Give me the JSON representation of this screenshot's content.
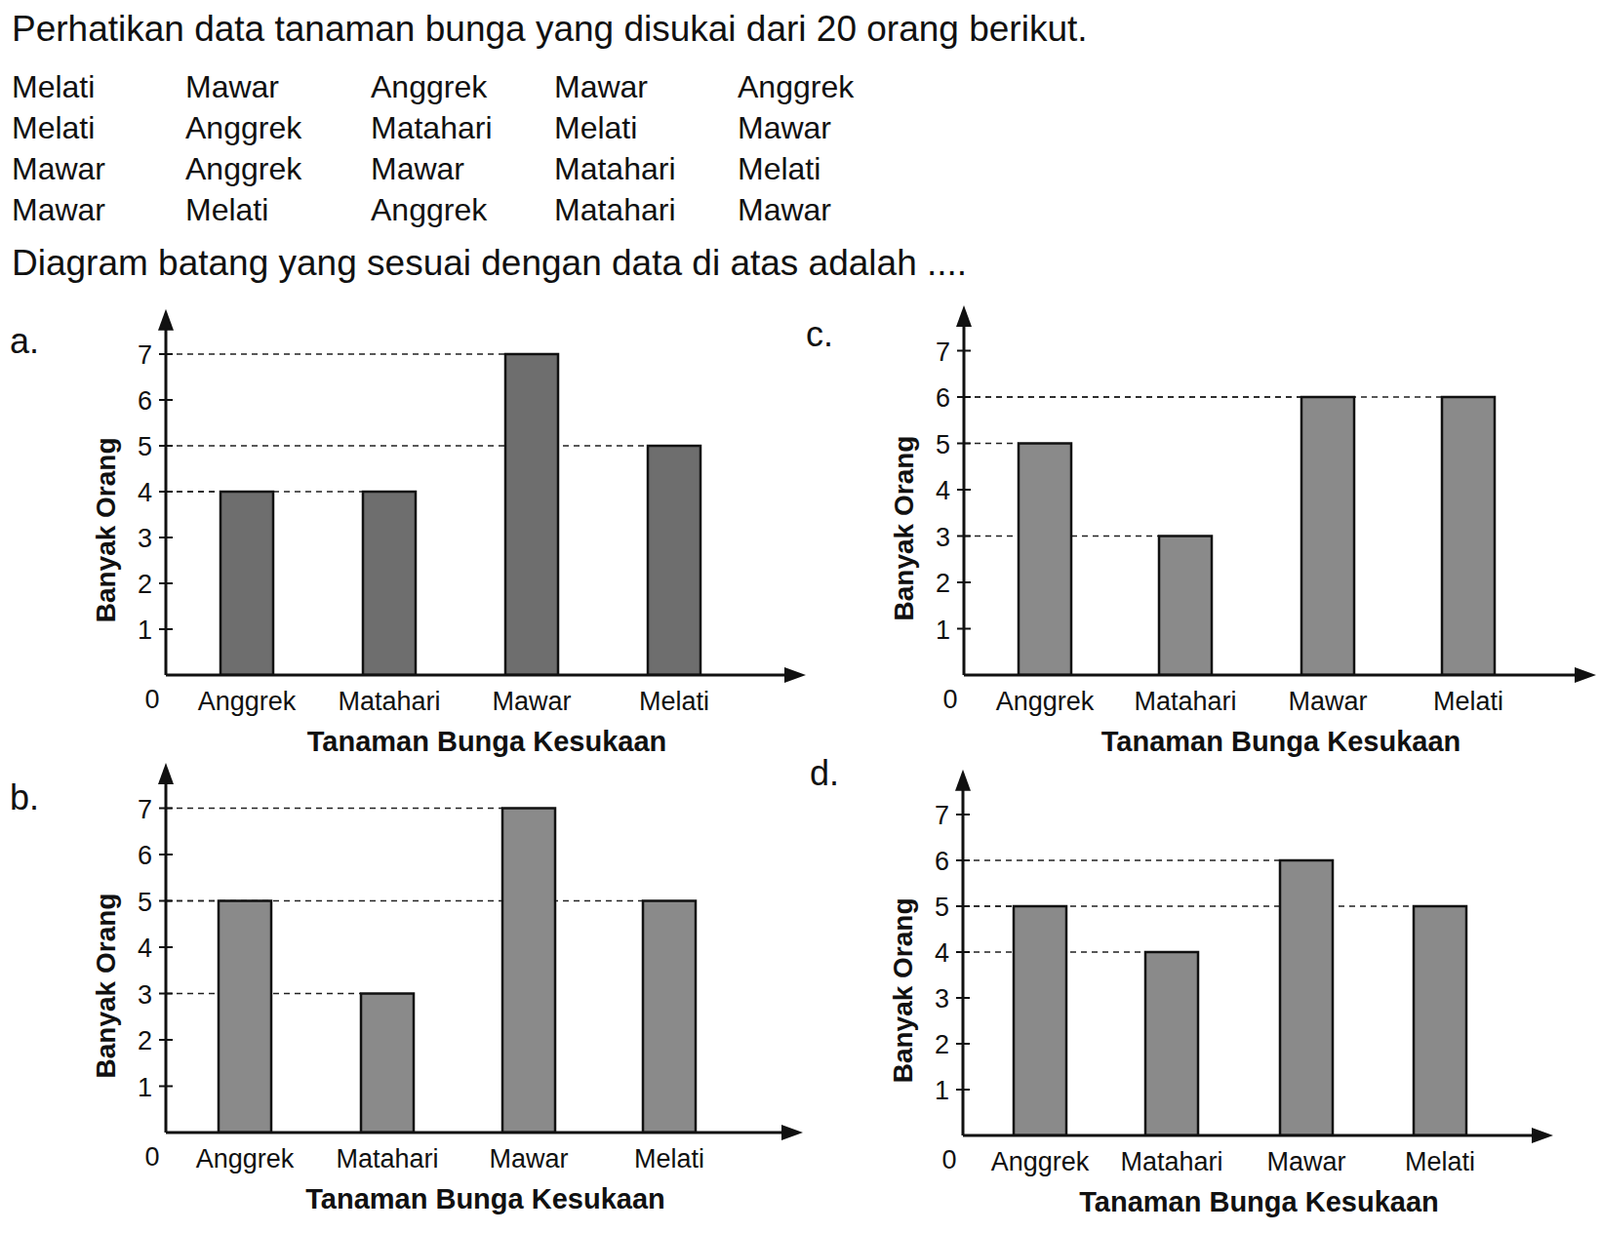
{
  "question": "Perhatikan data tanaman bunga yang disukai dari 20 orang berikut.",
  "data": [
    [
      "Melati",
      "Mawar",
      "Anggrek",
      "Mawar",
      "Anggrek"
    ],
    [
      "Melati",
      "Anggrek",
      "Matahari",
      "Melati",
      "Mawar"
    ],
    [
      "Mawar",
      "Anggrek",
      "Mawar",
      "Matahari",
      "Melati"
    ],
    [
      "Mawar",
      "Melati",
      "Anggrek",
      "Matahari",
      "Mawar"
    ]
  ],
  "prompt": "Diagram batang yang sesuai dengan data di atas adalah ....",
  "options": [
    "a.",
    "b.",
    "c.",
    "d."
  ],
  "chart_data": [
    {
      "type": "bar",
      "categories": [
        "Anggrek",
        "Matahari",
        "Mawar",
        "Melati"
      ],
      "values": [
        4,
        4,
        7,
        5
      ],
      "xlabel": "Tanaman Bunga Kesukaan",
      "ylabel": "Banyak Orang",
      "color": "#6e6e6e",
      "ylim": [
        0,
        7.6
      ],
      "yticks": [
        0,
        1,
        2,
        3,
        4,
        5,
        6,
        7
      ],
      "grid": false
    },
    {
      "type": "bar",
      "categories": [
        "Anggrek",
        "Matahari",
        "Mawar",
        "Melati"
      ],
      "values": [
        5,
        3,
        7,
        5
      ],
      "xlabel": "Tanaman Bunga Kesukaan",
      "ylabel": "Banyak Orang",
      "color": "#8a8a8a",
      "ylim": [
        0,
        7.6
      ],
      "yticks": [
        0,
        1,
        2,
        3,
        4,
        5,
        6,
        7
      ],
      "grid": false
    },
    {
      "type": "bar",
      "categories": [
        "Anggrek",
        "Matahari",
        "Mawar",
        "Melati"
      ],
      "values": [
        5,
        3,
        6,
        6
      ],
      "xlabel": "Tanaman Bunga Kesukaan",
      "ylabel": "Banyak Orang",
      "color": "#8a8a8a",
      "ylim": [
        0,
        7.6
      ],
      "yticks": [
        0,
        1,
        2,
        3,
        4,
        5,
        6,
        7
      ],
      "grid": false
    },
    {
      "type": "bar",
      "categories": [
        "Anggrek",
        "Matahari",
        "Mawar",
        "Melati"
      ],
      "values": [
        5,
        4,
        6,
        5
      ],
      "xlabel": "Tanaman Bunga Kesukaan",
      "ylabel": "Banyak Orang",
      "color": "#8a8a8a",
      "ylim": [
        0,
        7.6
      ],
      "yticks": [
        0,
        1,
        2,
        3,
        4,
        5,
        6,
        7
      ],
      "grid": false
    }
  ]
}
